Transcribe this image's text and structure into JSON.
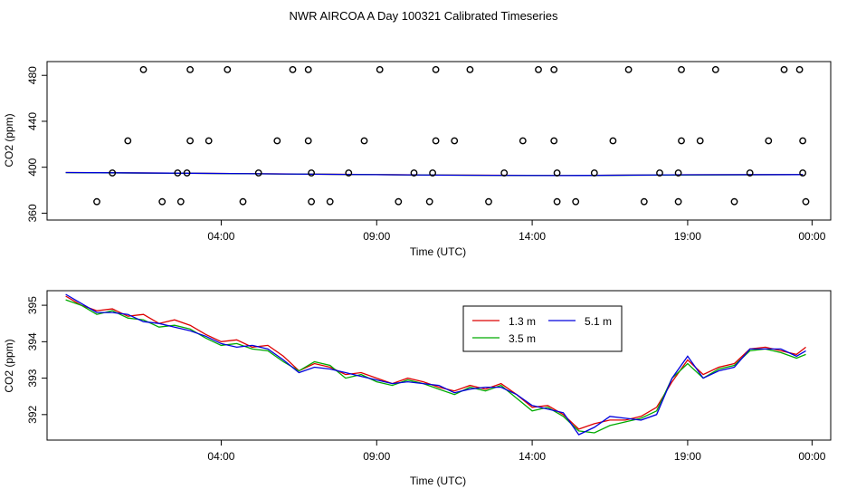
{
  "figure": {
    "title": "NWR AIRCOA A  Day 100321  Calibrated Timeseries"
  },
  "colors": {
    "series_1": "#dd0000",
    "series_2": "#00aa00",
    "series_3": "#0000dd",
    "markers": "#000000"
  },
  "chart_data": [
    {
      "type": "scatter",
      "title": "",
      "xlabel": "Time (UTC)",
      "ylabel": "CO2 (ppm)",
      "x_ticks": [
        "04:00",
        "09:00",
        "14:00",
        "19:00",
        "00:00"
      ],
      "y_ticks": [
        "360",
        "400",
        "440",
        "480"
      ],
      "xlim": [
        -0.6,
        24.6
      ],
      "ylim": [
        354,
        492
      ],
      "grid": false,
      "legend": "none",
      "calibration_points": [
        {
          "x": 1.0,
          "y": 370
        },
        {
          "x": 1.5,
          "y": 395
        },
        {
          "x": 2.0,
          "y": 423
        },
        {
          "x": 2.5,
          "y": 485
        },
        {
          "x": 3.1,
          "y": 370
        },
        {
          "x": 3.6,
          "y": 395
        },
        {
          "x": 3.7,
          "y": 370
        },
        {
          "x": 3.9,
          "y": 395
        },
        {
          "x": 4.0,
          "y": 423
        },
        {
          "x": 4.0,
          "y": 485
        },
        {
          "x": 4.6,
          "y": 423
        },
        {
          "x": 5.2,
          "y": 485
        },
        {
          "x": 5.7,
          "y": 370
        },
        {
          "x": 6.2,
          "y": 395
        },
        {
          "x": 6.8,
          "y": 423
        },
        {
          "x": 7.3,
          "y": 485
        },
        {
          "x": 7.8,
          "y": 485
        },
        {
          "x": 7.8,
          "y": 423
        },
        {
          "x": 7.9,
          "y": 395
        },
        {
          "x": 7.9,
          "y": 370
        },
        {
          "x": 8.5,
          "y": 370
        },
        {
          "x": 9.1,
          "y": 395
        },
        {
          "x": 9.6,
          "y": 423
        },
        {
          "x": 10.1,
          "y": 485
        },
        {
          "x": 10.7,
          "y": 370
        },
        {
          "x": 11.2,
          "y": 395
        },
        {
          "x": 11.7,
          "y": 370
        },
        {
          "x": 11.8,
          "y": 395
        },
        {
          "x": 11.9,
          "y": 423
        },
        {
          "x": 11.9,
          "y": 485
        },
        {
          "x": 12.5,
          "y": 423
        },
        {
          "x": 13.0,
          "y": 485
        },
        {
          "x": 13.6,
          "y": 370
        },
        {
          "x": 14.1,
          "y": 395
        },
        {
          "x": 14.7,
          "y": 423
        },
        {
          "x": 15.2,
          "y": 485
        },
        {
          "x": 15.7,
          "y": 485
        },
        {
          "x": 15.7,
          "y": 423
        },
        {
          "x": 15.8,
          "y": 395
        },
        {
          "x": 15.8,
          "y": 370
        },
        {
          "x": 16.4,
          "y": 370
        },
        {
          "x": 17.0,
          "y": 395
        },
        {
          "x": 17.6,
          "y": 423
        },
        {
          "x": 18.1,
          "y": 485
        },
        {
          "x": 18.6,
          "y": 370
        },
        {
          "x": 19.1,
          "y": 395
        },
        {
          "x": 19.7,
          "y": 370
        },
        {
          "x": 19.7,
          "y": 395
        },
        {
          "x": 19.8,
          "y": 423
        },
        {
          "x": 19.8,
          "y": 485
        },
        {
          "x": 20.4,
          "y": 423
        },
        {
          "x": 20.9,
          "y": 485
        },
        {
          "x": 21.5,
          "y": 370
        },
        {
          "x": 22.0,
          "y": 395
        },
        {
          "x": 22.6,
          "y": 423
        },
        {
          "x": 23.1,
          "y": 485
        },
        {
          "x": 23.6,
          "y": 485
        },
        {
          "x": 23.7,
          "y": 423
        },
        {
          "x": 23.7,
          "y": 395
        },
        {
          "x": 23.8,
          "y": 370
        }
      ],
      "series": [
        {
          "name": "",
          "values": [
            {
              "x": 0.0,
              "y": 395.4
            },
            {
              "x": 4.0,
              "y": 394.8
            },
            {
              "x": 8.0,
              "y": 394.0
            },
            {
              "x": 12.0,
              "y": 393.2
            },
            {
              "x": 16.0,
              "y": 392.8
            },
            {
              "x": 20.0,
              "y": 393.4
            },
            {
              "x": 23.7,
              "y": 393.6
            }
          ]
        },
        {
          "name": "",
          "values": [
            {
              "x": 0.0,
              "y": 395.3
            },
            {
              "x": 4.0,
              "y": 394.7
            },
            {
              "x": 8.0,
              "y": 393.9
            },
            {
              "x": 12.0,
              "y": 393.1
            },
            {
              "x": 16.0,
              "y": 392.7
            },
            {
              "x": 20.0,
              "y": 393.3
            },
            {
              "x": 23.7,
              "y": 393.5
            }
          ]
        },
        {
          "name": "",
          "values": [
            {
              "x": 0.0,
              "y": 395.4
            },
            {
              "x": 4.0,
              "y": 394.8
            },
            {
              "x": 8.0,
              "y": 393.9
            },
            {
              "x": 12.0,
              "y": 393.1
            },
            {
              "x": 16.0,
              "y": 392.7
            },
            {
              "x": 20.0,
              "y": 393.4
            },
            {
              "x": 23.7,
              "y": 393.6
            }
          ]
        }
      ]
    },
    {
      "type": "line",
      "title": "",
      "xlabel": "Time (UTC)",
      "ylabel": "CO2 (ppm)",
      "x_ticks": [
        "04:00",
        "09:00",
        "14:00",
        "19:00",
        "00:00"
      ],
      "y_ticks": [
        "392",
        "393",
        "394",
        "395"
      ],
      "xlim": [
        -0.6,
        24.6
      ],
      "ylim": [
        391.3,
        395.4
      ],
      "grid": false,
      "legend": "top-right",
      "series": [
        {
          "name": "1.3 m",
          "values": [
            {
              "x": 0.0,
              "y": 395.25
            },
            {
              "x": 0.5,
              "y": 395.0
            },
            {
              "x": 1.0,
              "y": 394.85
            },
            {
              "x": 1.5,
              "y": 394.9
            },
            {
              "x": 2.0,
              "y": 394.7
            },
            {
              "x": 2.5,
              "y": 394.75
            },
            {
              "x": 3.0,
              "y": 394.5
            },
            {
              "x": 3.5,
              "y": 394.6
            },
            {
              "x": 4.0,
              "y": 394.45
            },
            {
              "x": 4.5,
              "y": 394.2
            },
            {
              "x": 5.0,
              "y": 394.0
            },
            {
              "x": 5.5,
              "y": 394.05
            },
            {
              "x": 6.0,
              "y": 393.85
            },
            {
              "x": 6.5,
              "y": 393.9
            },
            {
              "x": 7.0,
              "y": 393.6
            },
            {
              "x": 7.5,
              "y": 393.2
            },
            {
              "x": 8.0,
              "y": 393.4
            },
            {
              "x": 8.5,
              "y": 393.3
            },
            {
              "x": 9.0,
              "y": 393.1
            },
            {
              "x": 9.5,
              "y": 393.15
            },
            {
              "x": 10.0,
              "y": 393.0
            },
            {
              "x": 10.5,
              "y": 392.85
            },
            {
              "x": 11.0,
              "y": 393.0
            },
            {
              "x": 11.5,
              "y": 392.9
            },
            {
              "x": 12.0,
              "y": 392.75
            },
            {
              "x": 12.5,
              "y": 392.65
            },
            {
              "x": 13.0,
              "y": 392.8
            },
            {
              "x": 13.5,
              "y": 392.7
            },
            {
              "x": 14.0,
              "y": 392.85
            },
            {
              "x": 14.5,
              "y": 392.55
            },
            {
              "x": 15.0,
              "y": 392.2
            },
            {
              "x": 15.5,
              "y": 392.25
            },
            {
              "x": 16.0,
              "y": 392.0
            },
            {
              "x": 16.5,
              "y": 391.6
            },
            {
              "x": 17.0,
              "y": 391.75
            },
            {
              "x": 17.5,
              "y": 391.85
            },
            {
              "x": 18.0,
              "y": 391.85
            },
            {
              "x": 18.5,
              "y": 391.95
            },
            {
              "x": 19.0,
              "y": 392.2
            },
            {
              "x": 19.5,
              "y": 392.9
            },
            {
              "x": 20.0,
              "y": 393.5
            },
            {
              "x": 20.5,
              "y": 393.1
            },
            {
              "x": 21.0,
              "y": 393.3
            },
            {
              "x": 21.5,
              "y": 393.4
            },
            {
              "x": 22.0,
              "y": 393.8
            },
            {
              "x": 22.5,
              "y": 393.85
            },
            {
              "x": 23.0,
              "y": 393.75
            },
            {
              "x": 23.5,
              "y": 393.65
            },
            {
              "x": 23.8,
              "y": 393.85
            }
          ]
        },
        {
          "name": "3.5 m",
          "values": [
            {
              "x": 0.0,
              "y": 395.15
            },
            {
              "x": 0.5,
              "y": 395.0
            },
            {
              "x": 1.0,
              "y": 394.75
            },
            {
              "x": 1.5,
              "y": 394.85
            },
            {
              "x": 2.0,
              "y": 394.65
            },
            {
              "x": 2.5,
              "y": 394.6
            },
            {
              "x": 3.0,
              "y": 394.4
            },
            {
              "x": 3.5,
              "y": 394.45
            },
            {
              "x": 4.0,
              "y": 394.35
            },
            {
              "x": 4.5,
              "y": 394.1
            },
            {
              "x": 5.0,
              "y": 393.9
            },
            {
              "x": 5.5,
              "y": 393.95
            },
            {
              "x": 6.0,
              "y": 393.8
            },
            {
              "x": 6.5,
              "y": 393.75
            },
            {
              "x": 7.0,
              "y": 393.45
            },
            {
              "x": 7.5,
              "y": 393.2
            },
            {
              "x": 8.0,
              "y": 393.45
            },
            {
              "x": 8.5,
              "y": 393.35
            },
            {
              "x": 9.0,
              "y": 393.0
            },
            {
              "x": 9.5,
              "y": 393.1
            },
            {
              "x": 10.0,
              "y": 392.9
            },
            {
              "x": 10.5,
              "y": 392.8
            },
            {
              "x": 11.0,
              "y": 392.95
            },
            {
              "x": 11.5,
              "y": 392.85
            },
            {
              "x": 12.0,
              "y": 392.7
            },
            {
              "x": 12.5,
              "y": 392.55
            },
            {
              "x": 13.0,
              "y": 392.75
            },
            {
              "x": 13.5,
              "y": 392.65
            },
            {
              "x": 14.0,
              "y": 392.8
            },
            {
              "x": 14.5,
              "y": 392.45
            },
            {
              "x": 15.0,
              "y": 392.1
            },
            {
              "x": 15.5,
              "y": 392.2
            },
            {
              "x": 16.0,
              "y": 391.95
            },
            {
              "x": 16.5,
              "y": 391.55
            },
            {
              "x": 17.0,
              "y": 391.5
            },
            {
              "x": 17.5,
              "y": 391.7
            },
            {
              "x": 18.0,
              "y": 391.8
            },
            {
              "x": 18.5,
              "y": 391.9
            },
            {
              "x": 19.0,
              "y": 392.1
            },
            {
              "x": 19.5,
              "y": 393.0
            },
            {
              "x": 20.0,
              "y": 393.4
            },
            {
              "x": 20.5,
              "y": 393.0
            },
            {
              "x": 21.0,
              "y": 393.25
            },
            {
              "x": 21.5,
              "y": 393.35
            },
            {
              "x": 22.0,
              "y": 393.75
            },
            {
              "x": 22.5,
              "y": 393.8
            },
            {
              "x": 23.0,
              "y": 393.7
            },
            {
              "x": 23.5,
              "y": 393.55
            },
            {
              "x": 23.8,
              "y": 393.65
            }
          ]
        },
        {
          "name": "5.1 m",
          "values": [
            {
              "x": 0.0,
              "y": 395.3
            },
            {
              "x": 0.5,
              "y": 395.05
            },
            {
              "x": 1.0,
              "y": 394.8
            },
            {
              "x": 1.5,
              "y": 394.8
            },
            {
              "x": 2.0,
              "y": 394.75
            },
            {
              "x": 2.5,
              "y": 394.55
            },
            {
              "x": 3.0,
              "y": 394.5
            },
            {
              "x": 3.5,
              "y": 394.4
            },
            {
              "x": 4.0,
              "y": 394.3
            },
            {
              "x": 4.5,
              "y": 394.15
            },
            {
              "x": 5.0,
              "y": 393.95
            },
            {
              "x": 5.5,
              "y": 393.85
            },
            {
              "x": 6.0,
              "y": 393.9
            },
            {
              "x": 6.5,
              "y": 393.8
            },
            {
              "x": 7.0,
              "y": 393.5
            },
            {
              "x": 7.5,
              "y": 393.15
            },
            {
              "x": 8.0,
              "y": 393.3
            },
            {
              "x": 8.5,
              "y": 393.25
            },
            {
              "x": 9.0,
              "y": 393.15
            },
            {
              "x": 9.5,
              "y": 393.05
            },
            {
              "x": 10.0,
              "y": 392.95
            },
            {
              "x": 10.5,
              "y": 392.85
            },
            {
              "x": 11.0,
              "y": 392.9
            },
            {
              "x": 11.5,
              "y": 392.85
            },
            {
              "x": 12.0,
              "y": 392.8
            },
            {
              "x": 12.5,
              "y": 392.6
            },
            {
              "x": 13.0,
              "y": 392.7
            },
            {
              "x": 13.5,
              "y": 392.75
            },
            {
              "x": 14.0,
              "y": 392.75
            },
            {
              "x": 14.5,
              "y": 392.55
            },
            {
              "x": 15.0,
              "y": 392.25
            },
            {
              "x": 15.5,
              "y": 392.15
            },
            {
              "x": 16.0,
              "y": 392.05
            },
            {
              "x": 16.5,
              "y": 391.45
            },
            {
              "x": 17.0,
              "y": 391.65
            },
            {
              "x": 17.5,
              "y": 391.95
            },
            {
              "x": 18.0,
              "y": 391.9
            },
            {
              "x": 18.5,
              "y": 391.85
            },
            {
              "x": 19.0,
              "y": 392.0
            },
            {
              "x": 19.5,
              "y": 393.0
            },
            {
              "x": 20.0,
              "y": 393.6
            },
            {
              "x": 20.5,
              "y": 393.0
            },
            {
              "x": 21.0,
              "y": 393.2
            },
            {
              "x": 21.5,
              "y": 393.3
            },
            {
              "x": 22.0,
              "y": 393.8
            },
            {
              "x": 22.5,
              "y": 393.8
            },
            {
              "x": 23.0,
              "y": 393.8
            },
            {
              "x": 23.5,
              "y": 393.6
            },
            {
              "x": 23.8,
              "y": 393.75
            }
          ]
        }
      ]
    }
  ]
}
